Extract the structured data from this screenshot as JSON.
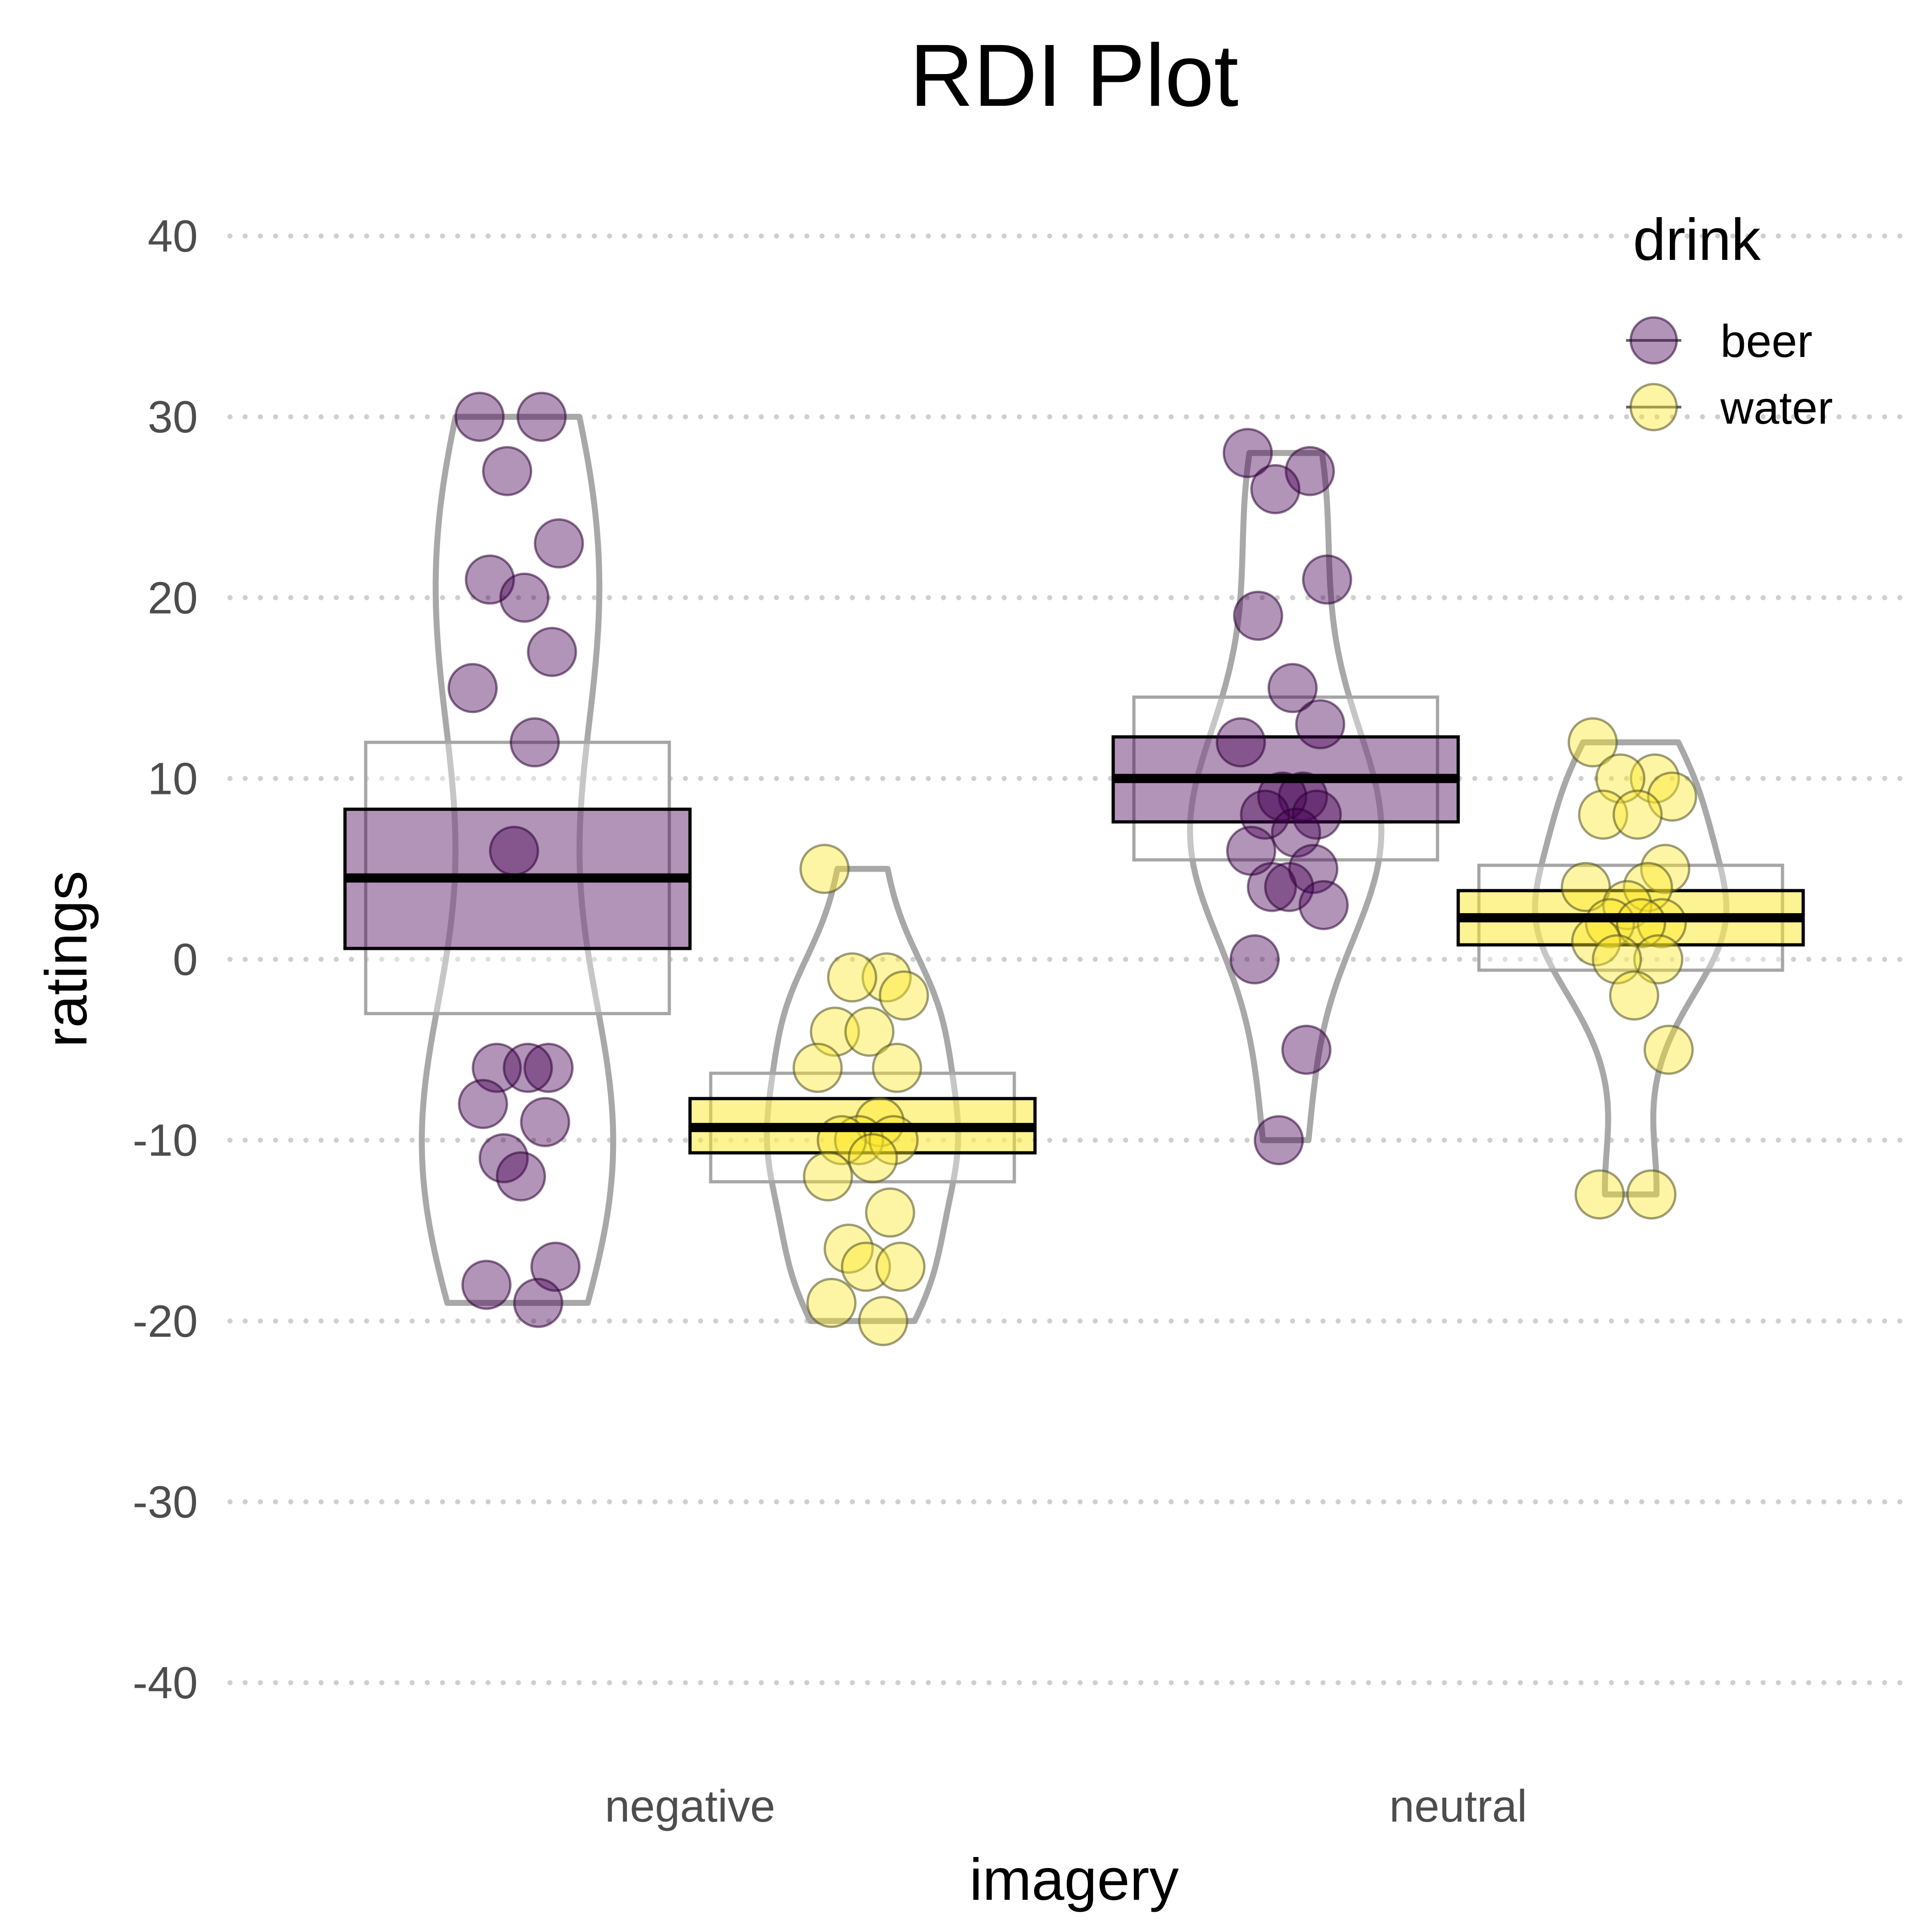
{
  "chart_data": {
    "type": "pirateplot",
    "title": "RDI Plot",
    "xlabel": "imagery",
    "ylabel": "ratings",
    "ylim": [
      -40,
      40
    ],
    "yticks": [
      40,
      30,
      20,
      10,
      0,
      -10,
      -20,
      -30,
      -40
    ],
    "grid": "horizontal dotted",
    "legend_placement": "top-right",
    "categories": [
      "negative",
      "neutral"
    ],
    "legend": {
      "title": "drink",
      "entries": [
        {
          "label": "beer",
          "color": "#440154"
        },
        {
          "label": "water",
          "color": "#FDE725"
        }
      ]
    },
    "series": [
      {
        "name": "beer",
        "color": "#440154",
        "groups": [
          {
            "category": "negative",
            "mean": 4.5,
            "bar_range": [
              0.6,
              8.3
            ],
            "interval": [
              -3,
              12
            ],
            "range": [
              -19,
              30
            ],
            "points": [
              30,
              30,
              27,
              23,
              21,
              20,
              17,
              15,
              12,
              6,
              -6,
              -6,
              -6,
              -8,
              -9,
              -11,
              -12,
              -17,
              -18,
              -19
            ]
          },
          {
            "category": "neutral",
            "mean": 10,
            "bar_range": [
              7.6,
              12.3
            ],
            "interval": [
              5.5,
              14.5
            ],
            "range": [
              -10,
              28
            ],
            "points": [
              28,
              27,
              26,
              21,
              19,
              15,
              13,
              12,
              9,
              9,
              8,
              8,
              7,
              6,
              5,
              4,
              4,
              3,
              0,
              -5,
              -10
            ]
          }
        ]
      },
      {
        "name": "water",
        "color": "#FDE725",
        "groups": [
          {
            "category": "negative",
            "mean": -9.3,
            "bar_range": [
              -10.7,
              -7.7
            ],
            "interval": [
              -12.3,
              -6.3
            ],
            "range": [
              -20,
              5
            ],
            "points": [
              5,
              -1,
              -1,
              -2,
              -4,
              -4,
              -6,
              -6,
              -9,
              -10,
              -10,
              -10,
              -11,
              -12,
              -14,
              -16,
              -17,
              -17,
              -19,
              -20
            ]
          },
          {
            "category": "neutral",
            "mean": 2.3,
            "bar_range": [
              0.8,
              3.8
            ],
            "interval": [
              -0.6,
              5.2
            ],
            "range": [
              -13,
              12
            ],
            "points": [
              12,
              10,
              10,
              9,
              8,
              8,
              5,
              4,
              4,
              3,
              2,
              2,
              2,
              1,
              0,
              0,
              -2,
              -5,
              -13,
              -13
            ]
          }
        ]
      }
    ]
  }
}
